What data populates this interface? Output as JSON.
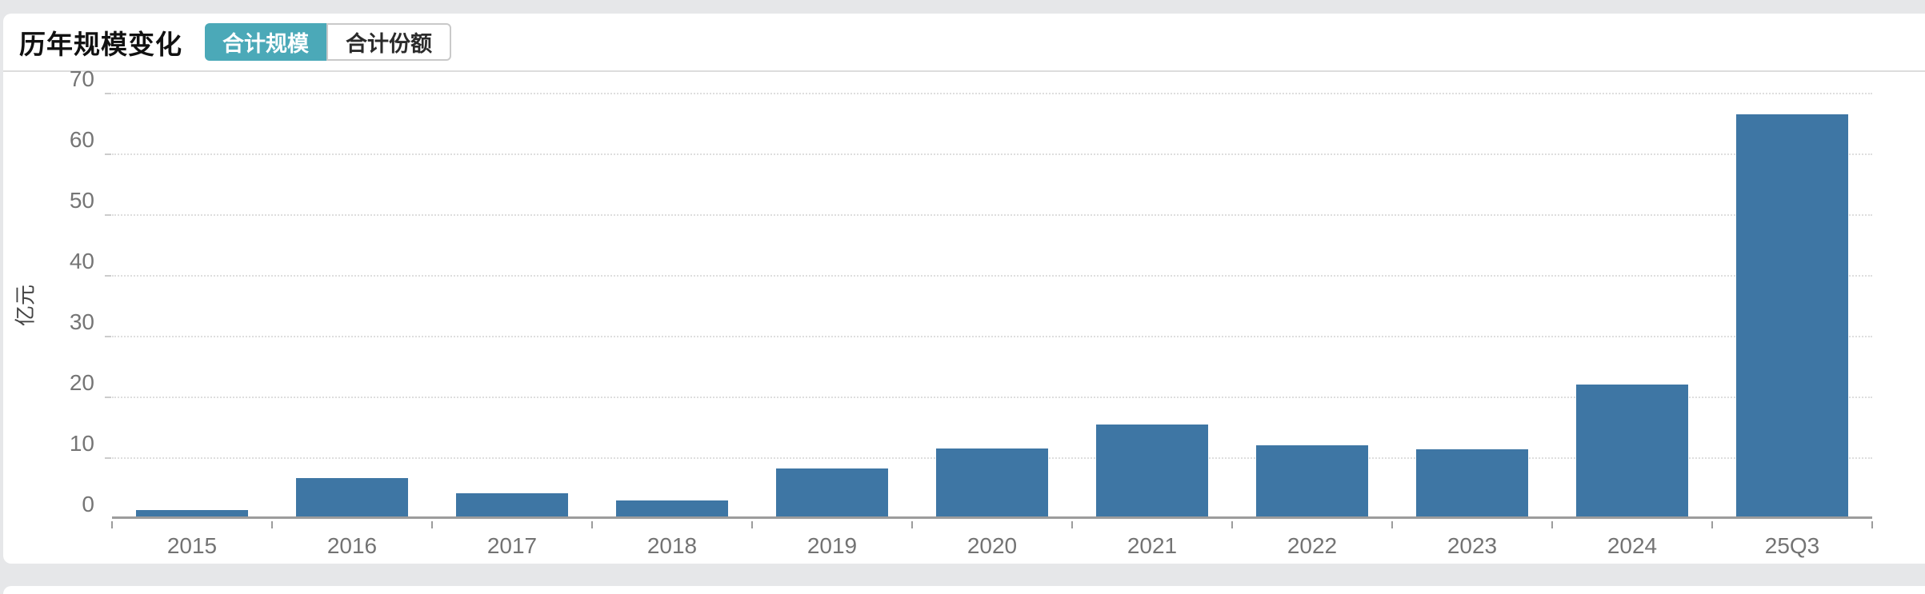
{
  "header": {
    "title": "历年规模变化",
    "tabs": [
      {
        "label": "合计规模",
        "active": true
      },
      {
        "label": "合计份额",
        "active": false
      }
    ]
  },
  "chart_data": {
    "type": "bar",
    "title": "历年规模变化",
    "categories": [
      "2015",
      "2016",
      "2017",
      "2018",
      "2019",
      "2020",
      "2021",
      "2022",
      "2023",
      "2024",
      "25Q3"
    ],
    "values": [
      1.0,
      6.4,
      3.9,
      2.6,
      8.0,
      11.2,
      15.2,
      11.8,
      11.1,
      21.9,
      66.5
    ],
    "xlabel": "",
    "ylabel": "亿元",
    "ylim": [
      0,
      70
    ],
    "y_ticks": [
      0,
      10,
      20,
      30,
      40,
      50,
      60,
      70
    ],
    "grid": "horizontal-dotted",
    "legend": "none",
    "bar_color": "#3e76a4"
  },
  "colors": {
    "accent_teal": "#4ba9b8",
    "bar_blue": "#3e76a4",
    "page_bg": "#e6e7e9",
    "card_bg": "#ffffff",
    "divider": "#dcdcdc",
    "axis_line": "#9c9c9c",
    "grid_line": "#dedede",
    "tick_text": "#757575"
  }
}
